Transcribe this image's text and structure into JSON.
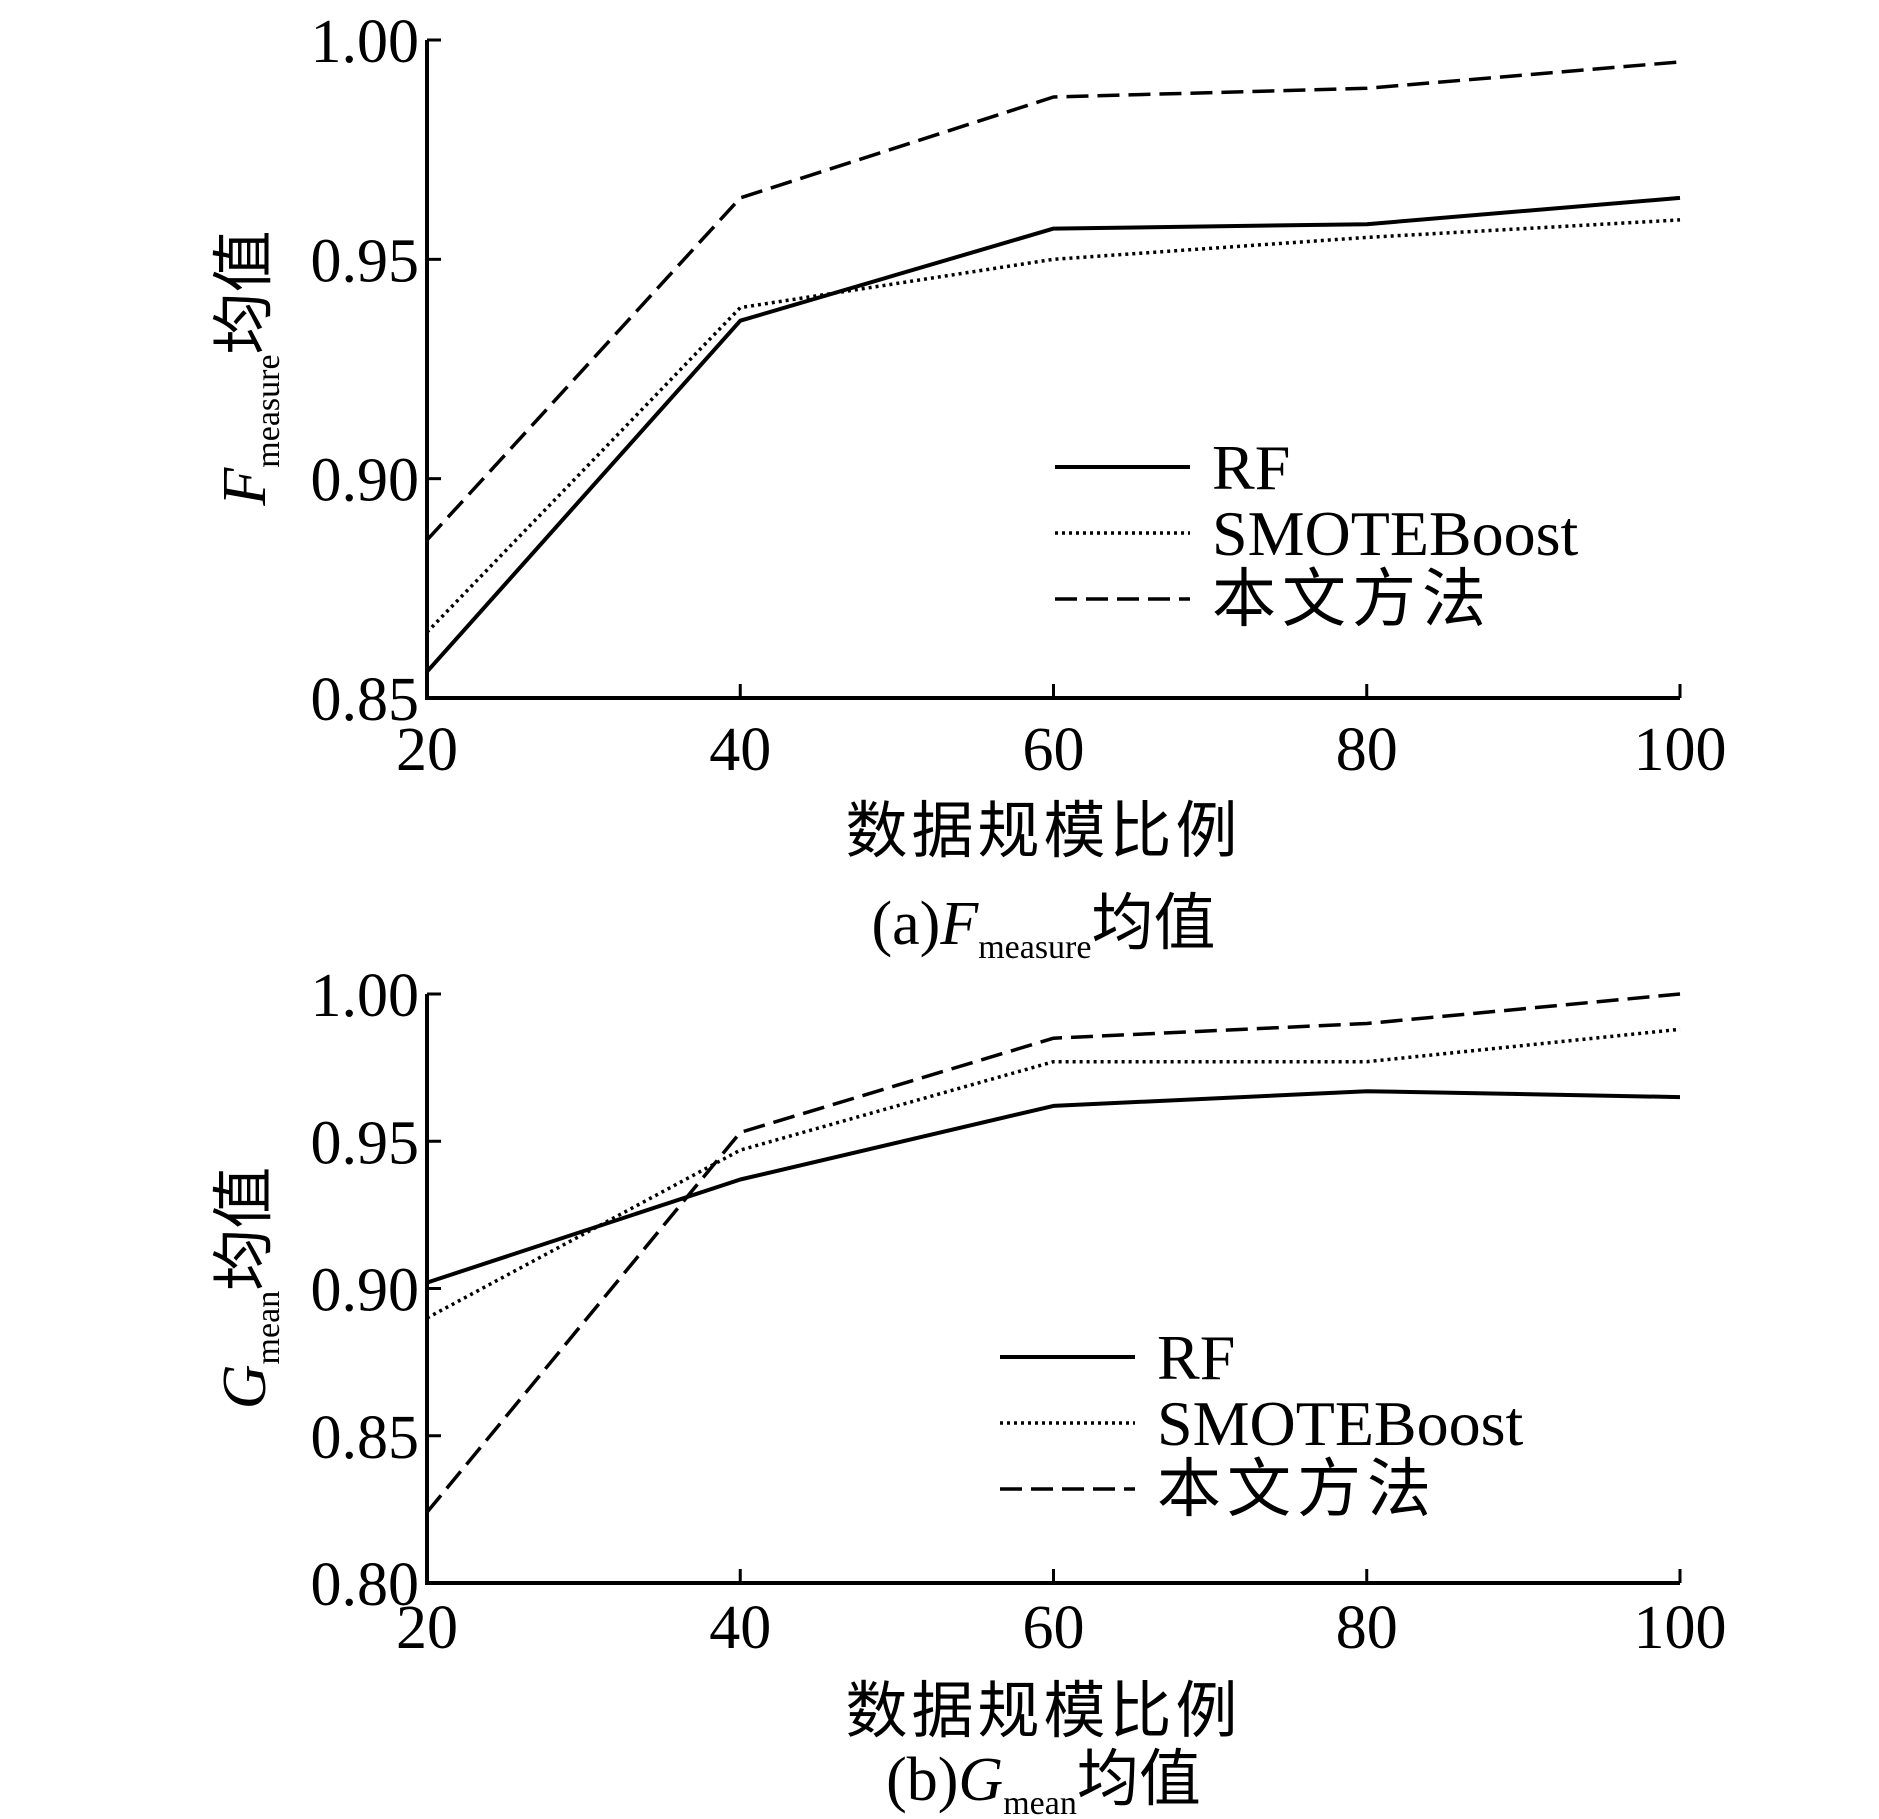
{
  "chart_data": [
    {
      "type": "line",
      "caption": {
        "prefix": "(a)",
        "symbol": "F",
        "subscript": "measure",
        "suffix": "均值"
      },
      "ylabel": {
        "symbol": "F",
        "subscript": "measure",
        "suffix": "均值"
      },
      "xlabel": "数据规模比例",
      "x": [
        20,
        40,
        60,
        80,
        100
      ],
      "x_tick_labels": [
        "20",
        "40",
        "60",
        "80",
        "100"
      ],
      "xlim": [
        20,
        100
      ],
      "ylim": [
        0.85,
        1.0
      ],
      "y_ticks": [
        0.85,
        0.9,
        0.95,
        1.0
      ],
      "y_tick_labels": [
        "0.85",
        "0.90",
        "0.95",
        "1.00"
      ],
      "grid": false,
      "legend_position": "right-center",
      "series": [
        {
          "name": "RF",
          "style": "solid",
          "values": [
            0.856,
            0.936,
            0.957,
            0.958,
            0.964
          ]
        },
        {
          "name": "SMOTEBoost",
          "style": "dotted",
          "values": [
            0.865,
            0.939,
            0.95,
            0.955,
            0.959
          ]
        },
        {
          "name": "本文方法",
          "style": "dashed",
          "values": [
            0.886,
            0.964,
            0.987,
            0.989,
            0.995
          ]
        }
      ]
    },
    {
      "type": "line",
      "caption": {
        "prefix": "(b)",
        "symbol": "G",
        "subscript": "mean",
        "suffix": "均值"
      },
      "ylabel": {
        "symbol": "G",
        "subscript": "mean",
        "suffix": "均值"
      },
      "xlabel": "数据规模比例",
      "x": [
        20,
        40,
        60,
        80,
        100
      ],
      "x_tick_labels": [
        "20",
        "40",
        "60",
        "80",
        "100"
      ],
      "xlim": [
        20,
        100
      ],
      "ylim": [
        0.8,
        1.0
      ],
      "y_ticks": [
        0.8,
        0.85,
        0.9,
        0.95,
        1.0
      ],
      "y_tick_labels": [
        "0.80",
        "0.85",
        "0.90",
        "0.95",
        "1.00"
      ],
      "grid": false,
      "legend_position": "right-center",
      "series": [
        {
          "name": "RF",
          "style": "solid",
          "values": [
            0.902,
            0.937,
            0.962,
            0.967,
            0.965
          ]
        },
        {
          "name": "SMOTEBoost",
          "style": "dotted",
          "values": [
            0.89,
            0.947,
            0.977,
            0.977,
            0.988
          ]
        },
        {
          "name": "本文方法",
          "style": "dashed",
          "values": [
            0.824,
            0.953,
            0.985,
            0.99,
            1.0
          ]
        }
      ]
    }
  ]
}
